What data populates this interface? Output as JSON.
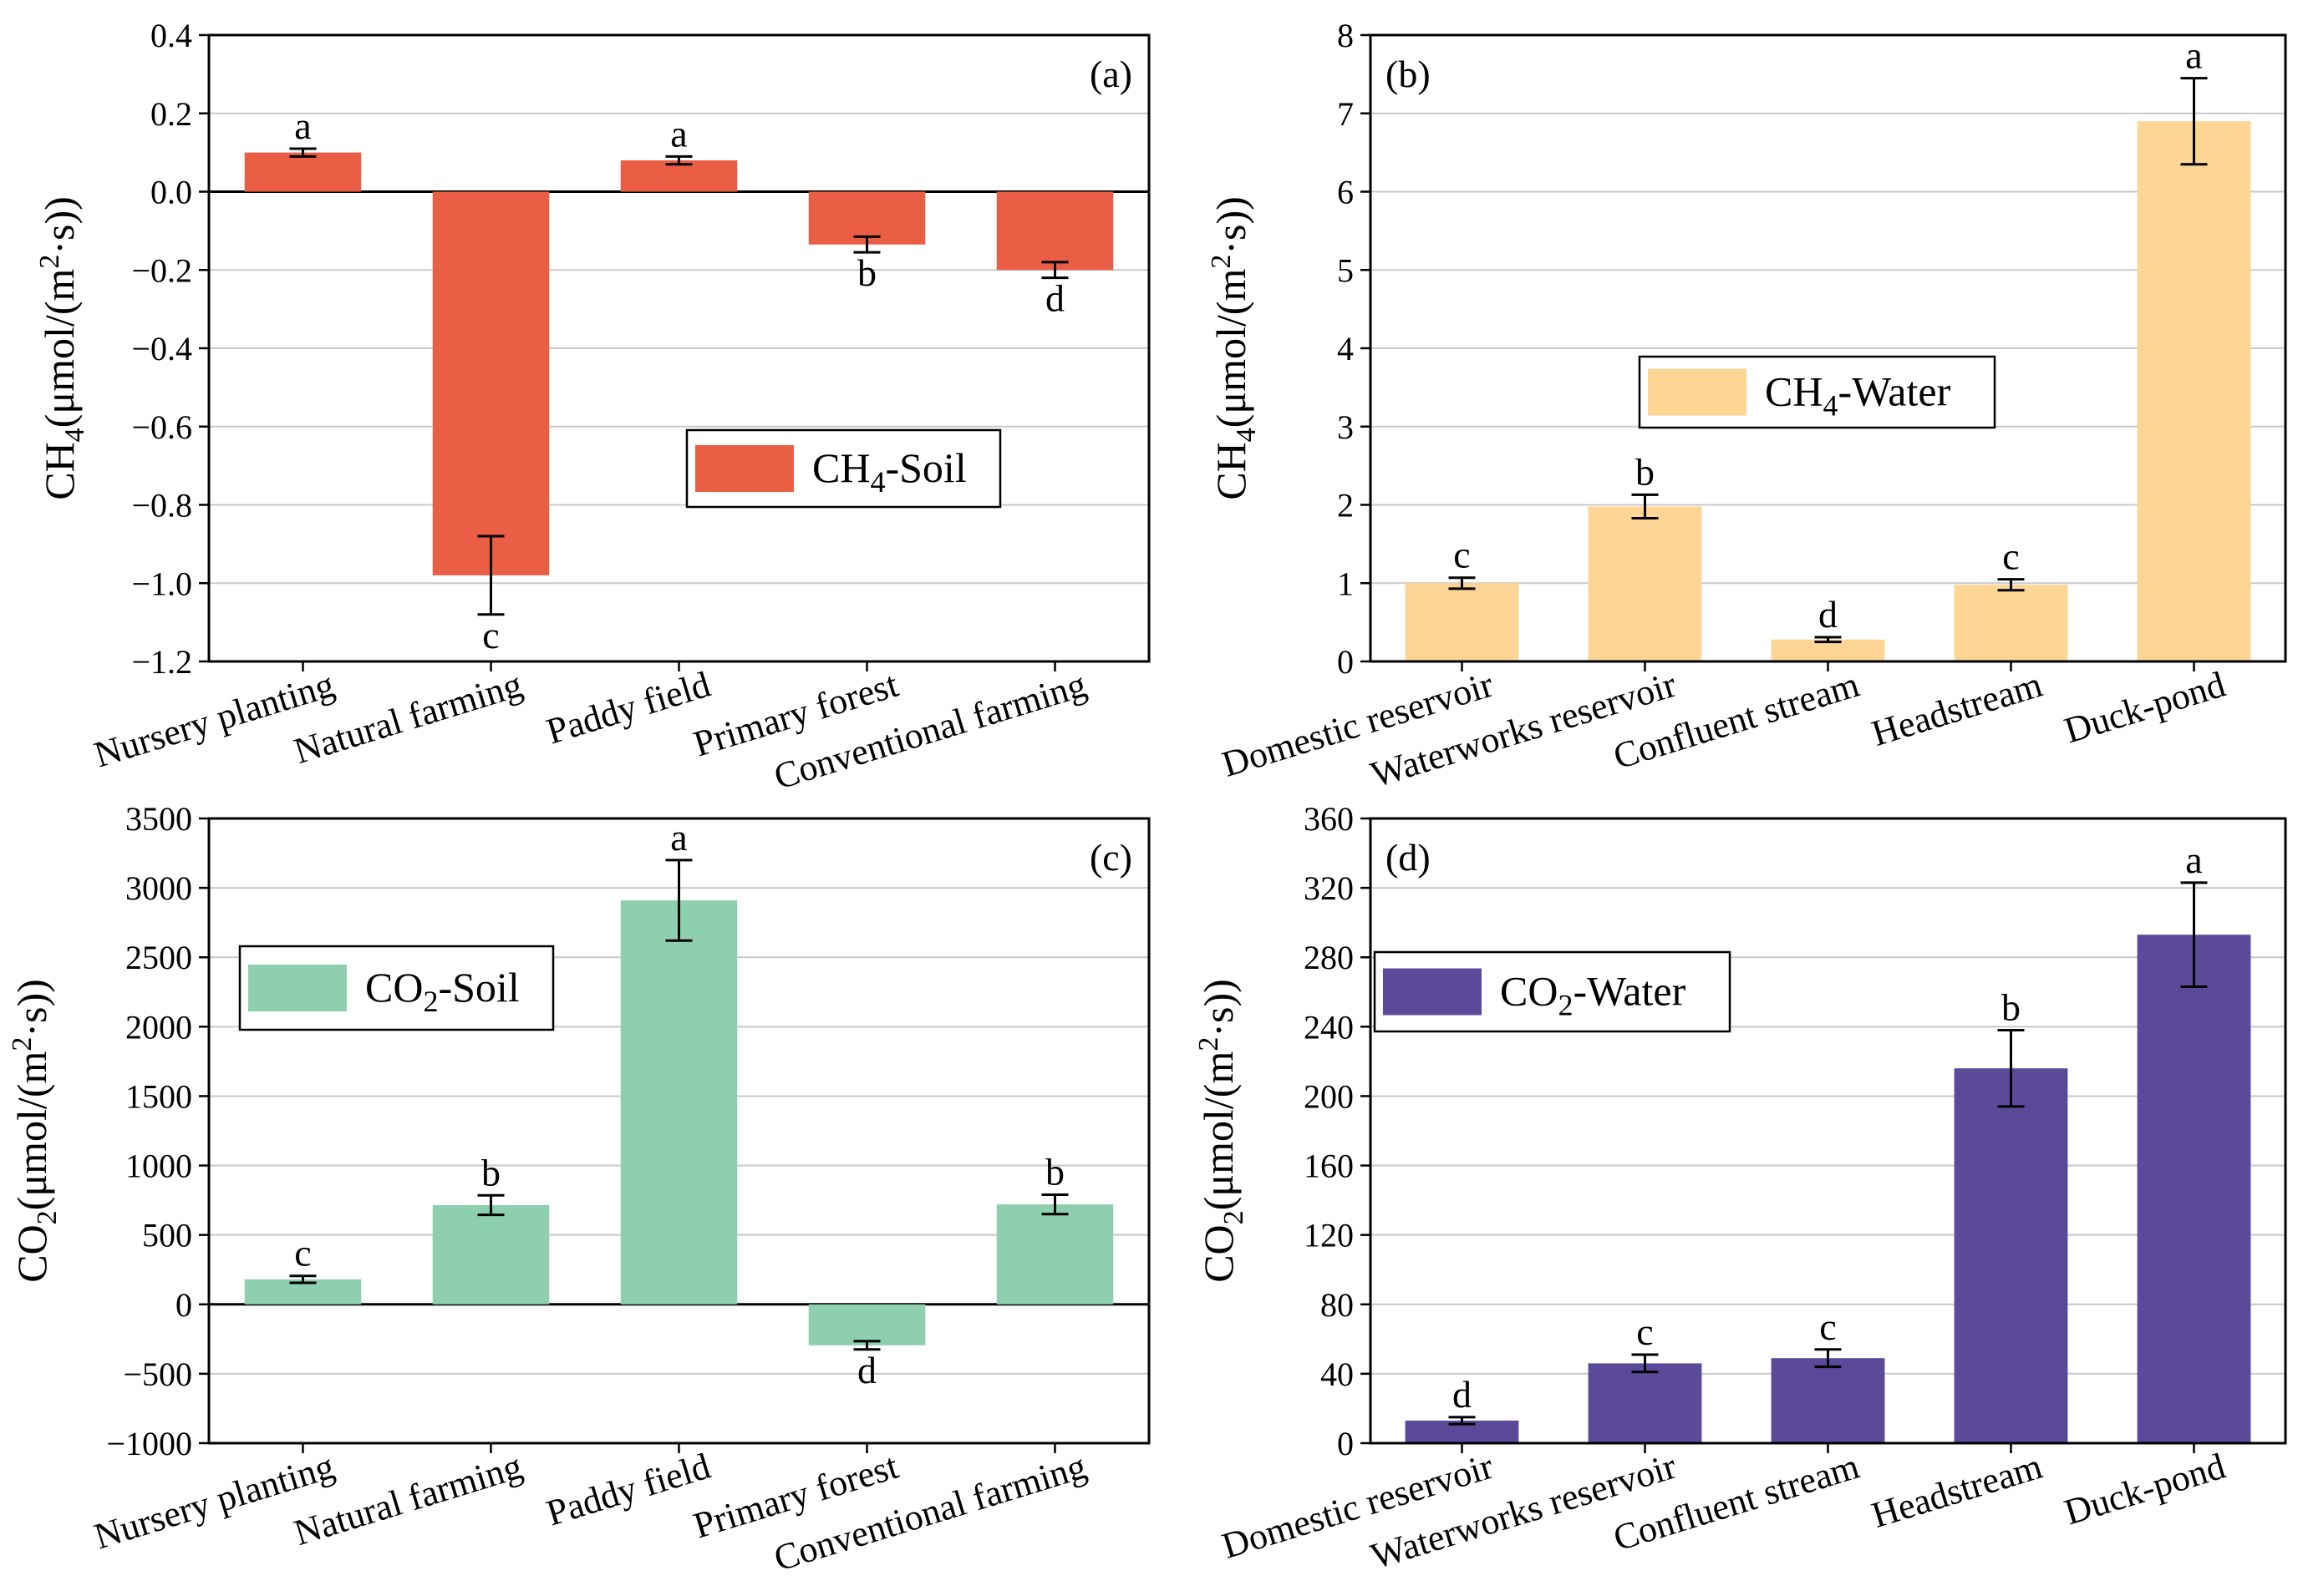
{
  "figure": {
    "description_panels": 4
  },
  "chart_data": [
    {
      "panel": "(a)",
      "type": "bar",
      "color": "#EB5E46",
      "legend": {
        "base": "CH",
        "sub": "4",
        "rest": "-Soil",
        "placement": "center-right"
      },
      "ylabel": {
        "base": "CH",
        "sub": "4",
        "mid": "(μmol/(m",
        "sup": "2",
        "end": "·s))"
      },
      "ylim": [
        -1.2,
        0.4
      ],
      "yticks": [
        -1.2,
        -1.0,
        -0.8,
        -0.6,
        -0.4,
        -0.2,
        0.0,
        0.2,
        0.4
      ],
      "ytick_labels": [
        "−1.2",
        "−1.0",
        "−0.8",
        "−0.6",
        "−0.4",
        "−0.2",
        "0.0",
        "0.2",
        "0.4"
      ],
      "categories": [
        "Nursery planting",
        "Natural farming",
        "Paddy field",
        "Primary forest",
        "Conventional farming"
      ],
      "values": [
        0.1,
        -0.98,
        0.08,
        -0.135,
        -0.2
      ],
      "errors": [
        0.01,
        0.1,
        0.01,
        0.02,
        0.02
      ],
      "letters": [
        "a",
        "c",
        "a",
        "b",
        "d"
      ]
    },
    {
      "panel": "(b)",
      "type": "bar",
      "color": "#FDD595",
      "legend": {
        "base": "CH",
        "sub": "4",
        "rest": "-Water",
        "placement": "center-left"
      },
      "ylabel": {
        "base": "CH",
        "sub": "4",
        "mid": "(μmol/(m",
        "sup": "2",
        "end": "·s))"
      },
      "ylim": [
        0,
        8
      ],
      "yticks": [
        0,
        1,
        2,
        3,
        4,
        5,
        6,
        7,
        8
      ],
      "ytick_labels": [
        "0",
        "1",
        "2",
        "3",
        "4",
        "5",
        "6",
        "7",
        "8"
      ],
      "categories": [
        "Domestic reservoir",
        "Waterworks reservoir",
        "Confluent stream",
        "Headstream",
        "Duck-pond"
      ],
      "values": [
        1.0,
        1.98,
        0.28,
        0.98,
        6.9
      ],
      "errors": [
        0.07,
        0.15,
        0.03,
        0.07,
        0.55
      ],
      "letters": [
        "c",
        "b",
        "d",
        "c",
        "a"
      ]
    },
    {
      "panel": "(c)",
      "type": "bar",
      "color": "#8ECFB0",
      "legend": {
        "base": "CO",
        "sub": "2",
        "rest": "-Soil",
        "placement": "top-left"
      },
      "ylabel": {
        "base": "CO",
        "sub": "2",
        "mid": "(μmol/(m",
        "sup": "2",
        "end": "·s))"
      },
      "ylim": [
        -1000,
        3500
      ],
      "yticks": [
        -1000,
        -500,
        0,
        500,
        1000,
        1500,
        2000,
        2500,
        3000,
        3500
      ],
      "ytick_labels": [
        "−1000",
        "−500",
        "0",
        "500",
        "1000",
        "1500",
        "2000",
        "2500",
        "3000",
        "3500"
      ],
      "categories": [
        "Nursery planting",
        "Natural farming",
        "Paddy field",
        "Primary forest",
        "Conventional farming"
      ],
      "values": [
        180,
        715,
        2910,
        -295,
        720
      ],
      "errors": [
        25,
        70,
        290,
        30,
        70
      ],
      "letters": [
        "c",
        "b",
        "a",
        "d",
        "b"
      ]
    },
    {
      "panel": "(d)",
      "type": "bar",
      "color": "#5B4A9A",
      "legend": {
        "base": "CO",
        "sub": "2",
        "rest": "-Water",
        "placement": "top-left"
      },
      "ylabel": {
        "base": "CO",
        "sub": "2",
        "mid": "(μmol/(m",
        "sup": "2",
        "end": "·s))"
      },
      "ylim": [
        0,
        360
      ],
      "yticks": [
        0,
        40,
        80,
        120,
        160,
        200,
        240,
        280,
        320,
        360
      ],
      "ytick_labels": [
        "0",
        "40",
        "80",
        "120",
        "160",
        "200",
        "240",
        "280",
        "320",
        "360"
      ],
      "categories": [
        "Domestic reservoir",
        "Waterworks reservoir",
        "Confluent stream",
        "Headstream",
        "Duck-pond"
      ],
      "values": [
        13,
        46,
        49,
        216,
        293
      ],
      "errors": [
        2,
        5,
        5,
        22,
        30
      ],
      "letters": [
        "d",
        "c",
        "c",
        "b",
        "a"
      ]
    }
  ]
}
